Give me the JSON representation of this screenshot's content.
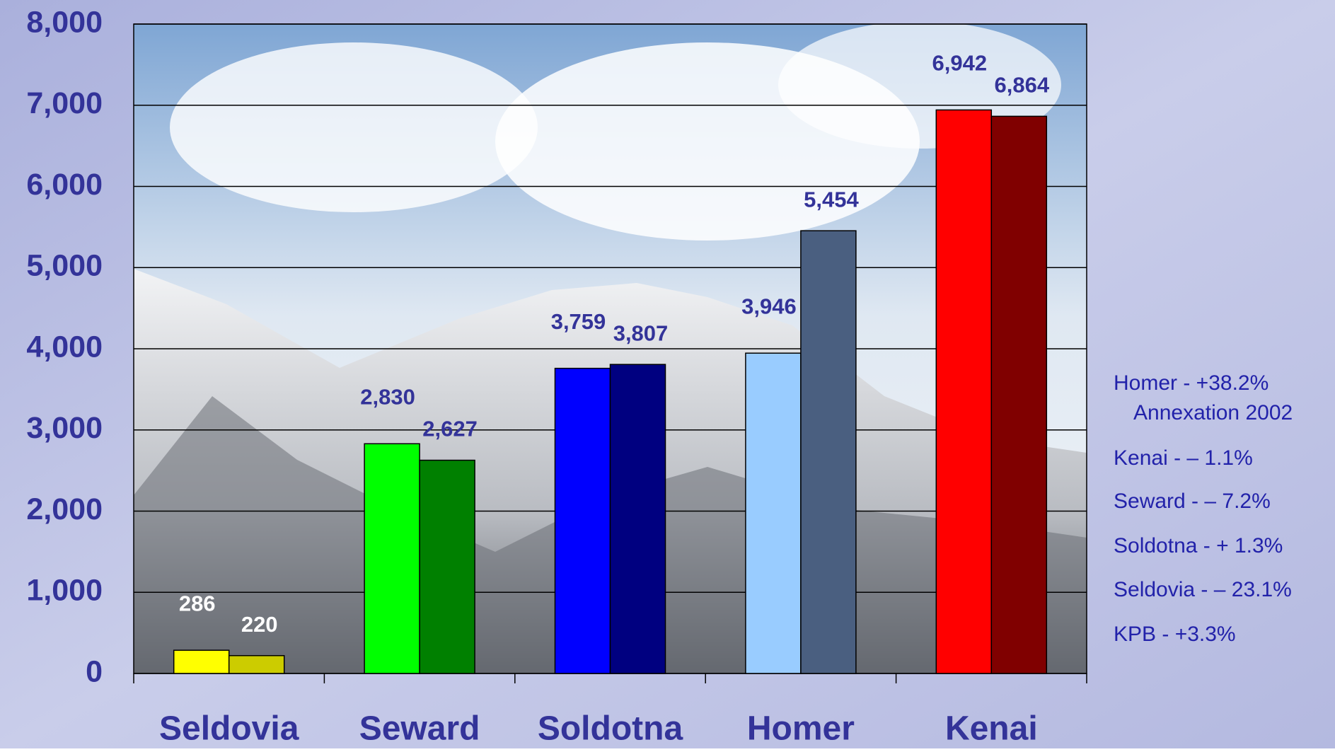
{
  "chart_data": {
    "type": "bar",
    "categories": [
      "Seldovia",
      "Seward",
      "Soldotna",
      "Homer",
      "Kenai"
    ],
    "series": [
      {
        "colors": [
          "#ffff00",
          "#00ff00",
          "#0000ff",
          "#99ccff",
          "#ff0000"
        ],
        "values": [
          286,
          2830,
          3759,
          3946,
          6942
        ],
        "value_labels": [
          "286",
          "2,830",
          "3,759",
          "3,946",
          "6,942"
        ],
        "label_colors": [
          "#ffffff",
          "#333399",
          "#333399",
          "#333399",
          "#333399"
        ]
      },
      {
        "colors": [
          "#cccc00",
          "#008000",
          "#000080",
          "#4a5f80",
          "#800000"
        ],
        "values": [
          220,
          2627,
          3807,
          5454,
          6864
        ],
        "value_labels": [
          "220",
          "2,627",
          "3,807",
          "5,454",
          "6,864"
        ],
        "label_colors": [
          "#ffffff",
          "#333399",
          "#333399",
          "#333399",
          "#333399"
        ]
      }
    ],
    "ylim": [
      0,
      8000
    ],
    "yticks": [
      0,
      {
        "value": 1000,
        "label": "1,000"
      },
      {
        "value": 2000,
        "label": "2,000"
      },
      {
        "value": 3000,
        "label": "3,000"
      },
      {
        "value": 4000,
        "label": "4,000"
      },
      {
        "value": 5000,
        "label": "5,000"
      },
      {
        "value": 6000,
        "label": "6,000"
      },
      {
        "value": 7000,
        "label": "7,000"
      },
      {
        "value": 8000,
        "label": "8,000"
      }
    ],
    "grid": true,
    "annotations": [
      "Homer - +38.2%",
      "Annexation 2002",
      "Kenai - – 1.1%",
      "Seward - – 7.2%",
      "Soldotna - + 1.3%",
      "Seldovia - – 23.1%",
      "KPB - +3.3%"
    ]
  }
}
